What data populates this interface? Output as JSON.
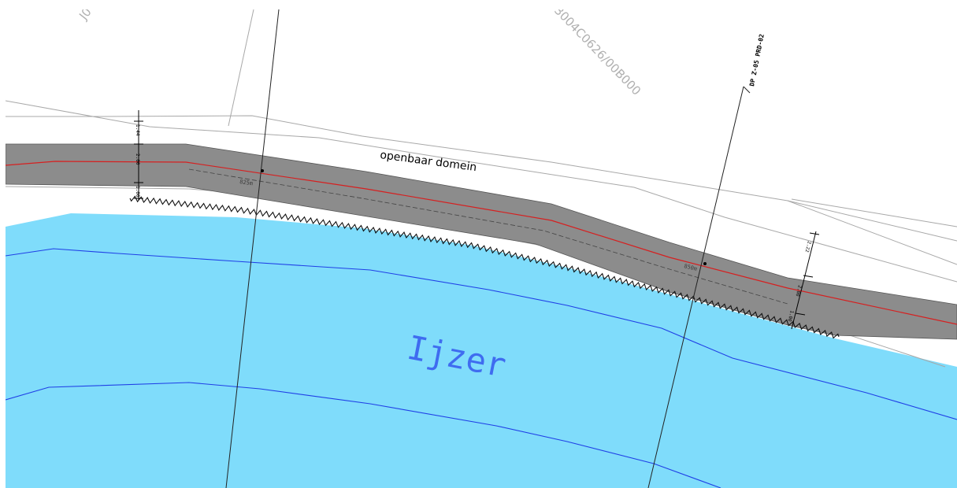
{
  "map": {
    "parcel_labels": {
      "top_left": "J0",
      "center": "3004C0626/00B000"
    },
    "road_label": "openbaar domein",
    "water_label": "Ijzer",
    "profile_label": "DP Z-05 PRD-02",
    "chainage": {
      "first": "825m",
      "second": "850m"
    },
    "dimensions": {
      "left": {
        "top": "1.44",
        "middle": "2.00",
        "bottom": "1.00"
      },
      "right": {
        "top": "2.22",
        "middle": "2.00",
        "bottom": "1.00"
      }
    },
    "colors": {
      "water": "#7fdcfb",
      "road": "#8c8c8c",
      "centerline": "#d62020",
      "bathymetry": "#1f3fe6",
      "water_label": "#3f6cf0",
      "parcel_lines": "#a8a8a8"
    }
  }
}
